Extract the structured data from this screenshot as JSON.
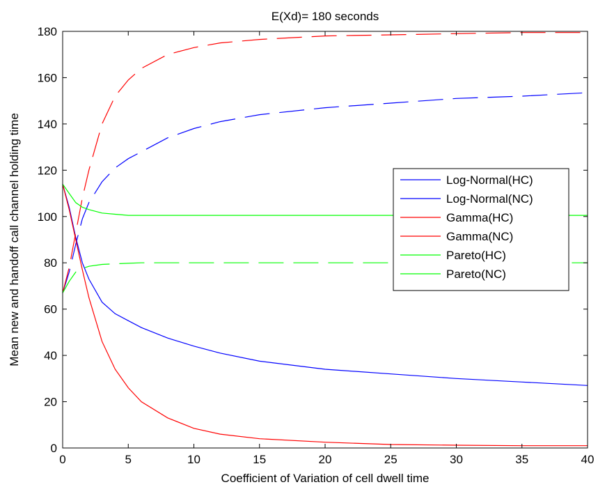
{
  "chart_data": {
    "type": "line",
    "title": "E(Xd)= 180 seconds",
    "xlabel": "Coefficient of Variation of cell dwell time",
    "ylabel": "Mean new and handoff call channel holding time",
    "xlim": [
      0,
      40
    ],
    "ylim": [
      0,
      180
    ],
    "xticks": [
      0,
      5,
      10,
      15,
      20,
      25,
      30,
      35,
      40
    ],
    "yticks": [
      0,
      20,
      40,
      60,
      80,
      100,
      120,
      140,
      160,
      180
    ],
    "grid": false,
    "legend_position": "right",
    "series": [
      {
        "name": "Log-Normal(HC)",
        "color": "#0000ff",
        "dash": "solid",
        "x": [
          0,
          0.5,
          1,
          1.5,
          2,
          3,
          4,
          5,
          6,
          8,
          10,
          12,
          15,
          20,
          25,
          30,
          35,
          40
        ],
        "y": [
          114,
          104,
          91,
          80,
          73,
          63,
          58,
          55,
          52,
          47.5,
          44,
          41,
          37.5,
          34,
          32,
          30,
          28.5,
          27
        ]
      },
      {
        "name": "Log-Normal(NC)",
        "color": "#0000ff",
        "dash": "dashed",
        "x": [
          0,
          0.5,
          1,
          1.5,
          2,
          3,
          4,
          5,
          6,
          8,
          10,
          12,
          15,
          20,
          25,
          30,
          35,
          40
        ],
        "y": [
          67,
          76,
          88,
          99,
          106,
          115,
          121,
          125,
          128,
          134,
          138,
          141,
          144,
          147,
          149,
          151,
          152,
          153.5
        ]
      },
      {
        "name": "Gamma(HC)",
        "color": "#ff0000",
        "dash": "solid",
        "x": [
          0,
          0.5,
          1,
          1.5,
          2,
          3,
          4,
          5,
          6,
          8,
          10,
          12,
          15,
          20,
          25,
          30,
          35,
          40
        ],
        "y": [
          114,
          103,
          90,
          77,
          65,
          46,
          34,
          26,
          20,
          13,
          8.5,
          6,
          4,
          2.5,
          1.5,
          1.2,
          1,
          1
        ]
      },
      {
        "name": "Gamma(NC)",
        "color": "#ff0000",
        "dash": "dashed",
        "x": [
          0,
          0.5,
          1,
          1.5,
          2,
          3,
          4,
          5,
          6,
          8,
          10,
          12,
          15,
          20,
          25,
          30,
          35,
          40
        ],
        "y": [
          67,
          78,
          93,
          108,
          120,
          140,
          152,
          159,
          164,
          170,
          173,
          175,
          176.5,
          178,
          178.5,
          179,
          179.5,
          179.5
        ]
      },
      {
        "name": "Pareto(HC)",
        "color": "#00ff00",
        "dash": "solid",
        "x": [
          0,
          0.5,
          1,
          1.5,
          2,
          3,
          4,
          5,
          6,
          8,
          10,
          15,
          20,
          25,
          30,
          35,
          40
        ],
        "y": [
          114,
          110,
          106,
          104,
          103,
          101.5,
          101,
          100.5,
          100.5,
          100.5,
          100.5,
          100.5,
          100.5,
          100.5,
          100.5,
          100.5,
          100.5
        ]
      },
      {
        "name": "Pareto(NC)",
        "color": "#00ff00",
        "dash": "dashed",
        "x": [
          0,
          0.5,
          1,
          1.5,
          2,
          3,
          4,
          5,
          6,
          8,
          10,
          15,
          20,
          25,
          30,
          35,
          40
        ],
        "y": [
          67,
          72,
          76,
          77.5,
          78.5,
          79.3,
          79.6,
          79.8,
          80,
          80,
          80,
          80,
          80,
          80,
          80,
          80,
          80
        ]
      }
    ]
  }
}
